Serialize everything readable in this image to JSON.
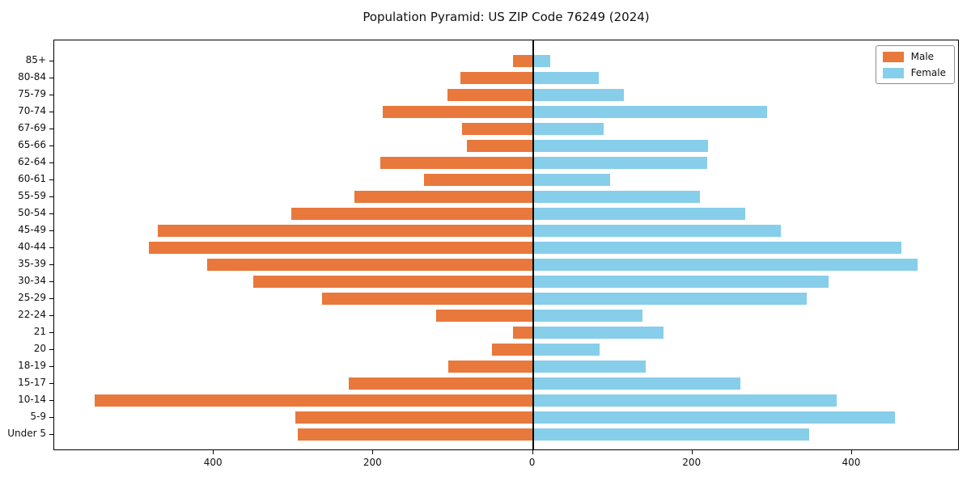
{
  "title": "Population Pyramid: US ZIP Code 76249 (2024)",
  "legend": {
    "male_label": "Male",
    "female_label": "Female"
  },
  "colors": {
    "male": "#e8783c",
    "female": "#87ceeb",
    "axis": "#000000",
    "zero_line": "#000000",
    "background": "#ffffff"
  },
  "chart_data": {
    "type": "bar",
    "subtype": "population-pyramid",
    "title": "Population Pyramid: US ZIP Code 76249 (2024)",
    "xlabel": "",
    "ylabel": "",
    "grid": false,
    "legend_position": "upper right",
    "categories_top_to_bottom": [
      "85+",
      "80-84",
      "75-79",
      "70-74",
      "67-69",
      "65-66",
      "62-64",
      "60-61",
      "55-59",
      "50-54",
      "45-49",
      "40-44",
      "35-39",
      "30-34",
      "25-29",
      "22-24",
      "21",
      "20",
      "18-19",
      "15-17",
      "10-14",
      "5-9",
      "Under 5"
    ],
    "series": [
      {
        "name": "Male",
        "side": "left",
        "color": "#e8783c",
        "values": [
          25,
          91,
          107,
          188,
          89,
          83,
          191,
          136,
          224,
          303,
          470,
          481,
          408,
          350,
          264,
          121,
          25,
          51,
          106,
          231,
          549,
          298,
          295
        ]
      },
      {
        "name": "Female",
        "side": "right",
        "color": "#87ceeb",
        "values": [
          22,
          83,
          114,
          294,
          89,
          220,
          219,
          97,
          209,
          266,
          311,
          462,
          482,
          371,
          343,
          137,
          164,
          84,
          141,
          260,
          381,
          454,
          346
        ]
      }
    ],
    "x_axis": {
      "range": [
        -600,
        535
      ],
      "tick_values": [
        -400,
        -200,
        0,
        200,
        400
      ],
      "tick_labels": [
        "400",
        "200",
        "0",
        "200",
        "400"
      ]
    }
  }
}
